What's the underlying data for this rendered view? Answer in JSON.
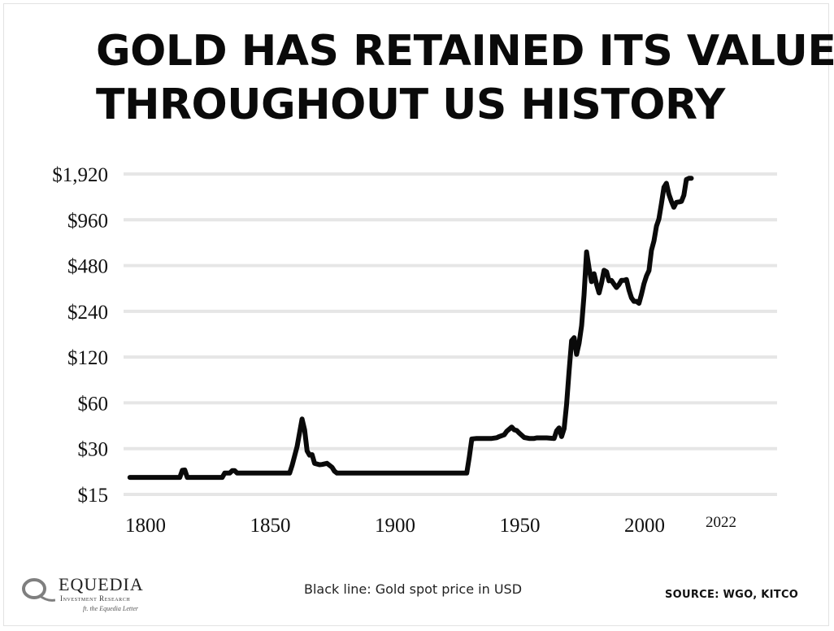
{
  "title_lines": [
    "GOLD HAS RETAINED ITS VALUE",
    "THROUGHOUT US HISTORY"
  ],
  "caption": "Black line: Gold spot price in USD",
  "source": "SOURCE:  WGO, KITCO",
  "logo": {
    "name": "EQUEDIA",
    "subtitle": "Investment Research",
    "tagline": "ft. the Equedia Letter"
  },
  "colors": {
    "line": "#0a0a0a",
    "grid": "#e6e6e6",
    "text": "#111111"
  },
  "chart_data": {
    "type": "line",
    "title": "GOLD HAS RETAINED ITS VALUE THROUGHOUT US HISTORY",
    "xlabel": "",
    "ylabel": "",
    "y_scale": "log2",
    "y_ticks": [
      15,
      30,
      60,
      120,
      240,
      480,
      960,
      1920
    ],
    "y_tick_labels": [
      "$15",
      "$30",
      "$60",
      "$120",
      "$240",
      "$480",
      "$960",
      "$1,920"
    ],
    "x_ticks": [
      1800,
      1850,
      1900,
      1950,
      2000,
      2022
    ],
    "x_tick_labels": [
      "1800",
      "1850",
      "1900",
      "1950",
      "2000",
      "2022"
    ],
    "xlim": [
      1800,
      2022
    ],
    "ylim": [
      15,
      1920
    ],
    "grid": true,
    "legend": "none",
    "series": [
      {
        "x": [
          1797,
          1817,
          1818,
          1819,
          1820,
          1834,
          1835,
          1837,
          1838,
          1839,
          1840,
          1861,
          1862,
          1864,
          1866,
          1867,
          1868,
          1869,
          1870,
          1871,
          1873,
          1874,
          1876,
          1878,
          1879,
          1880,
          1882,
          1890,
          1900,
          1910,
          1920,
          1932,
          1933,
          1934,
          1936,
          1939,
          1940,
          1942,
          1944,
          1945,
          1946,
          1947,
          1948,
          1950,
          1951,
          1952,
          1953,
          1955,
          1957,
          1959,
          1960,
          1962,
          1964,
          1967,
          1968,
          1969,
          1970,
          1971,
          1972,
          1973,
          1974,
          1975,
          1976,
          1977,
          1978,
          1979,
          1980,
          1981,
          1982,
          1983,
          1984,
          1985,
          1986,
          1987,
          1988,
          1989,
          1990,
          1991,
          1992,
          1993,
          1994,
          1995,
          1996,
          1997,
          1998,
          1999,
          2000,
          2001,
          2002,
          2003,
          2004,
          2005,
          2006,
          2007,
          2008,
          2009,
          2010,
          2011,
          2012,
          2013,
          2014,
          2015,
          2016,
          2017,
          2018,
          2019,
          2020,
          2021,
          2022
        ],
        "y": [
          19.4,
          19.4,
          21.6,
          21.7,
          19.4,
          19.4,
          20.7,
          20.7,
          21.5,
          21.5,
          20.7,
          20.7,
          23.2,
          31,
          47,
          40,
          29,
          27.2,
          27.4,
          24,
          23.5,
          23.6,
          24,
          22.6,
          21.3,
          20.7,
          20.7,
          20.7,
          20.7,
          20.7,
          20.7,
          20.7,
          26.3,
          34.7,
          35,
          35,
          35,
          35,
          35.4,
          36,
          36.5,
          37,
          39,
          41.6,
          39.9,
          39.5,
          38,
          35.5,
          35,
          35,
          35.3,
          35.3,
          35.3,
          35,
          39.3,
          41.1,
          36,
          40.6,
          58.4,
          97,
          154,
          161,
          125,
          148,
          193,
          307,
          590,
          460,
          376,
          424,
          361,
          317,
          368,
          447,
          437,
          381,
          383,
          362,
          344,
          360,
          384,
          384,
          388,
          331,
          294,
          279,
          279,
          271,
          310,
          364,
          410,
          445,
          604,
          696,
          872,
          972,
          1225,
          1571,
          1669,
          1411,
          1266,
          1160,
          1251,
          1257,
          1268,
          1392,
          1769,
          1799,
          1800
        ]
      }
    ]
  }
}
